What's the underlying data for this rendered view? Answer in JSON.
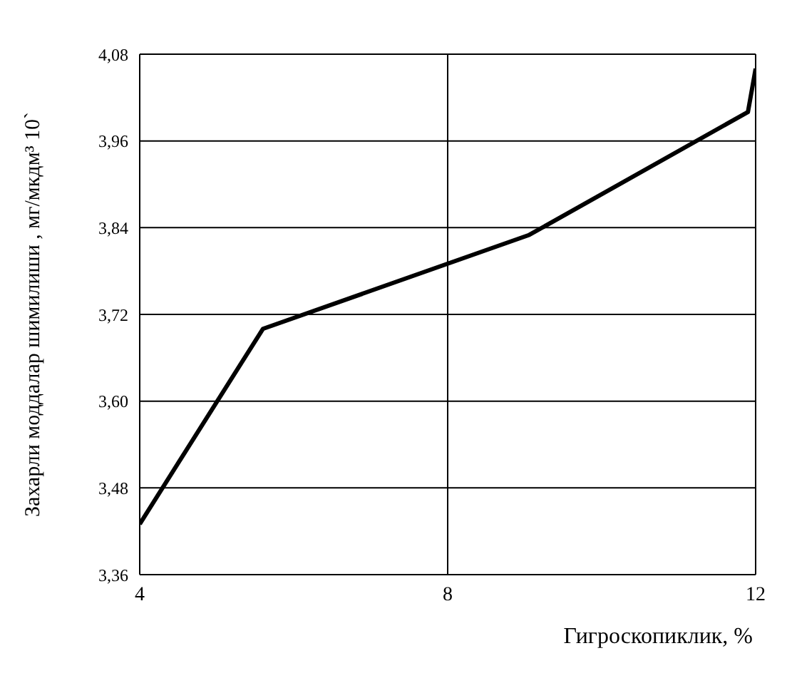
{
  "chart_data": {
    "type": "line",
    "xlabel": "Гигроскопиклик, %",
    "ylabel": "Захарли моддалар шимилиши  , мг/мкдм³ 10`",
    "x": [
      4,
      5.6,
      9.06,
      11.9,
      12
    ],
    "series": [
      {
        "color": "#000000",
        "values": [
          3.43,
          3.7,
          3.83,
          4.0,
          4.06
        ]
      }
    ],
    "xlim": [
      4,
      12
    ],
    "xticks": [
      4,
      8,
      12
    ],
    "ylim": [
      3.36,
      4.08
    ],
    "yticks": [
      {
        "value": 3.36,
        "label": "3,36"
      },
      {
        "value": 3.48,
        "label": "3,48"
      },
      {
        "value": 3.6,
        "label": "3,60"
      },
      {
        "value": 3.72,
        "label": "3,72"
      },
      {
        "value": 3.84,
        "label": "3,84"
      },
      {
        "value": 3.96,
        "label": "3,96"
      },
      {
        "value": 4.08,
        "label": "4,08"
      }
    ],
    "grid": true,
    "marker": "none",
    "line_style": "solid",
    "legend": false
  }
}
